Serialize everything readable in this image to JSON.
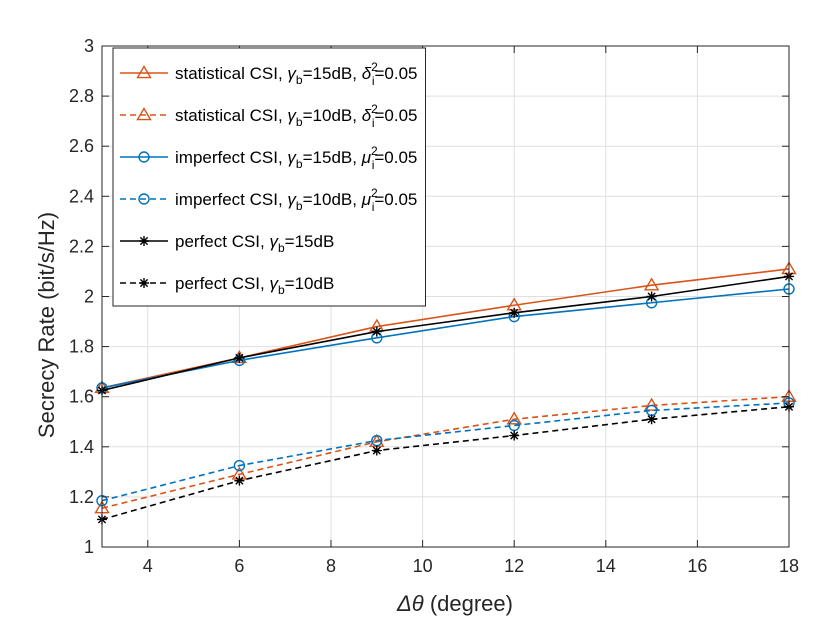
{
  "chart_data": {
    "type": "line",
    "title": "",
    "xlabel_symbol": "Δθ",
    "xlabel_unit": " (degree)",
    "ylabel": "Secrecy Rate (bit/s/Hz)",
    "xlim": [
      3,
      18
    ],
    "ylim": [
      1,
      3
    ],
    "xticks": [
      4,
      6,
      8,
      10,
      12,
      14,
      16,
      18
    ],
    "yticks": [
      1,
      1.2,
      1.4,
      1.6,
      1.8,
      2,
      2.2,
      2.4,
      2.6,
      2.8,
      3
    ],
    "grid": true,
    "legend_position": "top-left",
    "x": [
      3,
      6,
      9,
      12,
      15,
      18
    ],
    "series": [
      {
        "name": "statistical CSI, γb=15dB, δi2=0.05",
        "legend": {
          "pre": "statistical CSI, ",
          "sym": "γ",
          "sub": "b",
          "mid": "=15dB, ",
          "sym2": "δ",
          "sub2": "i",
          "sup2": "2",
          "post": "=0.05"
        },
        "color": "#D95319",
        "dash": "solid",
        "marker": "triangle",
        "values": [
          1.635,
          1.755,
          1.88,
          1.965,
          2.045,
          2.11
        ]
      },
      {
        "name": "statistical CSI, γb=10dB, δi2=0.05",
        "legend": {
          "pre": "statistical CSI, ",
          "sym": "γ",
          "sub": "b",
          "mid": "=10dB, ",
          "sym2": "δ",
          "sub2": "i",
          "sup2": "2",
          "post": "=0.05"
        },
        "color": "#D95319",
        "dash": "dashed",
        "marker": "triangle",
        "values": [
          1.155,
          1.29,
          1.42,
          1.51,
          1.565,
          1.6
        ]
      },
      {
        "name": "imperfect CSI, γb=15dB, μi2=0.05",
        "legend": {
          "pre": "imperfect CSI, ",
          "sym": "γ",
          "sub": "b",
          "mid": "=15dB, ",
          "sym2": "μ",
          "sub2": "i",
          "sup2": "2",
          "post": "=0.05"
        },
        "color": "#0072BD",
        "dash": "solid",
        "marker": "circle",
        "values": [
          1.635,
          1.745,
          1.835,
          1.92,
          1.975,
          2.03
        ]
      },
      {
        "name": "imperfect CSI, γb=10dB, μi2=0.05",
        "legend": {
          "pre": "imperfect CSI, ",
          "sym": "γ",
          "sub": "b",
          "mid": "=10dB, ",
          "sym2": "μ",
          "sub2": "i",
          "sup2": "2",
          "post": "=0.05"
        },
        "color": "#0072BD",
        "dash": "dashed",
        "marker": "circle",
        "values": [
          1.185,
          1.325,
          1.425,
          1.485,
          1.545,
          1.575
        ]
      },
      {
        "name": "perfect CSI, γb=15dB",
        "legend": {
          "pre": "perfect CSI, ",
          "sym": "γ",
          "sub": "b",
          "mid": "=15dB",
          "sym2": "",
          "sub2": "",
          "sup2": "",
          "post": ""
        },
        "color": "#000000",
        "dash": "solid",
        "marker": "star",
        "values": [
          1.625,
          1.755,
          1.86,
          1.935,
          2.0,
          2.08
        ]
      },
      {
        "name": "perfect CSI, γb=10dB",
        "legend": {
          "pre": "perfect CSI, ",
          "sym": "γ",
          "sub": "b",
          "mid": "=10dB",
          "sym2": "",
          "sub2": "",
          "sup2": "",
          "post": ""
        },
        "color": "#000000",
        "dash": "dashed",
        "marker": "star",
        "values": [
          1.11,
          1.265,
          1.385,
          1.445,
          1.51,
          1.56
        ]
      }
    ]
  }
}
